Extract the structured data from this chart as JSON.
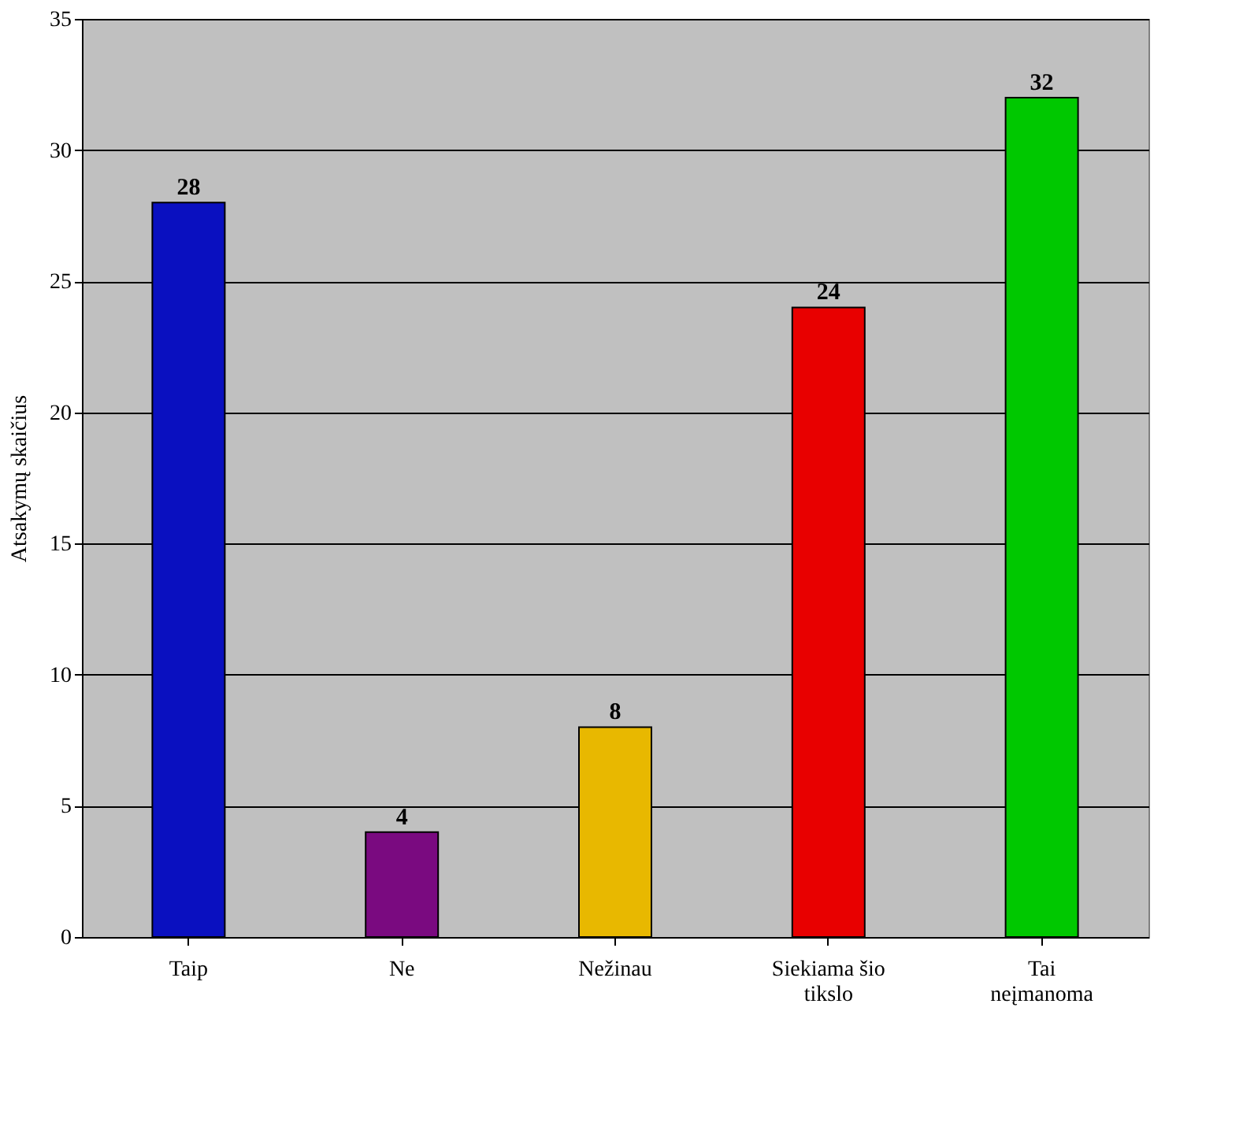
{
  "chart_data": {
    "type": "bar",
    "categories": [
      "Taip",
      "Ne",
      "Nežinau",
      "Siekiama šio tikslo",
      "Tai neįmanoma"
    ],
    "values": [
      28,
      4,
      8,
      24,
      32
    ],
    "colors": [
      "#0a10c0",
      "#7a0a80",
      "#e8b800",
      "#e80000",
      "#00c800"
    ],
    "ylabel": "Atsakymų skaičius",
    "ylim": [
      0,
      35
    ],
    "yticks": [
      0,
      5,
      10,
      15,
      20,
      25,
      30,
      35
    ],
    "grid": "y",
    "data_labels": true
  }
}
